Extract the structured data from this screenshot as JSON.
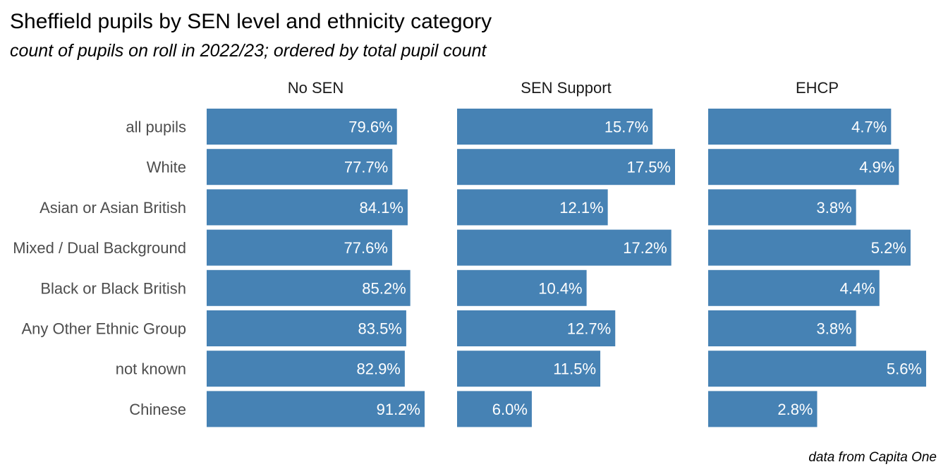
{
  "chart_data": {
    "type": "bar",
    "orientation": "horizontal",
    "facet_type": "panels",
    "title": "Sheffield pupils by SEN level and ethnicity category",
    "subtitle": "count of pupils on roll in 2022/23; ordered by total pupil count",
    "caption": "data from Capita One",
    "categories": [
      "all pupils",
      "White",
      "Asian or Asian British",
      "Mixed / Dual Background",
      "Black or Black British",
      "Any Other Ethnic Group",
      "not known",
      "Chinese"
    ],
    "series": [
      {
        "name": "No SEN",
        "values": [
          79.6,
          77.7,
          84.1,
          77.6,
          85.2,
          83.5,
          82.9,
          91.2
        ],
        "labels": [
          "79.6%",
          "77.7%",
          "84.1%",
          "77.6%",
          "85.2%",
          "83.5%",
          "82.9%",
          "91.2%"
        ]
      },
      {
        "name": "SEN Support",
        "values": [
          15.7,
          17.5,
          12.1,
          17.2,
          10.4,
          12.7,
          11.5,
          6.0
        ],
        "labels": [
          "15.7%",
          "17.5%",
          "12.1%",
          "17.2%",
          "10.4%",
          "12.7%",
          "11.5%",
          "6.0%"
        ]
      },
      {
        "name": "EHCP",
        "values": [
          4.7,
          4.9,
          3.8,
          5.2,
          4.4,
          3.8,
          5.6,
          2.8
        ],
        "labels": [
          "4.7%",
          "4.9%",
          "3.8%",
          "5.2%",
          "4.4%",
          "3.8%",
          "5.6%",
          "2.8%"
        ]
      }
    ],
    "xlim_per_panel": [
      [
        0,
        91.2
      ],
      [
        0,
        17.5
      ],
      [
        0,
        5.6
      ]
    ],
    "bar_color": "#4682b4",
    "label_color": "#ffffff",
    "grid": false,
    "legend": "none"
  }
}
